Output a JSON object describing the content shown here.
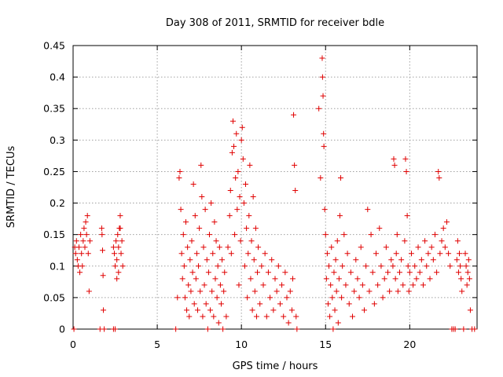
{
  "chart_data": {
    "type": "scatter",
    "title": "Day 308 of 2011, SRMTID for receiver bdle",
    "xlabel": "GPS time / hours",
    "ylabel": "SRMTID / TECUs",
    "xlim": [
      0,
      24
    ],
    "ylim": [
      0,
      0.45
    ],
    "xticks": [
      0,
      5,
      10,
      15,
      20
    ],
    "yticks": [
      0,
      0.05,
      0.1,
      0.15,
      0.2,
      0.25,
      0.3,
      0.35,
      0.4,
      0.45
    ],
    "xtick_labels": [
      "0",
      "5",
      "10",
      "15",
      "20"
    ],
    "ytick_labels": [
      "0",
      "0.05",
      "0.1",
      "0.15",
      "0.2",
      "0.25",
      "0.3",
      "0.35",
      "0.4",
      "0.45"
    ],
    "grid": true,
    "marker": "+",
    "color": "#e00000",
    "series": [
      {
        "name": "SRMTID",
        "points": [
          [
            0.05,
            0.0
          ],
          [
            0.1,
            0.13
          ],
          [
            0.15,
            0.12
          ],
          [
            0.2,
            0.14
          ],
          [
            0.25,
            0.11
          ],
          [
            0.3,
            0.1
          ],
          [
            0.35,
            0.13
          ],
          [
            0.4,
            0.09
          ],
          [
            0.45,
            0.15
          ],
          [
            0.5,
            0.12
          ],
          [
            0.55,
            0.1
          ],
          [
            0.6,
            0.14
          ],
          [
            0.65,
            0.16
          ],
          [
            0.7,
            0.13
          ],
          [
            0.75,
            0.17
          ],
          [
            0.8,
            0.15
          ],
          [
            0.85,
            0.18
          ],
          [
            0.9,
            0.12
          ],
          [
            0.95,
            0.06
          ],
          [
            1.0,
            0.14
          ],
          [
            1.7,
            0.16
          ],
          [
            1.72,
            0.15
          ],
          [
            1.75,
            0.125
          ],
          [
            1.78,
            0.085
          ],
          [
            1.8,
            0.03
          ],
          [
            1.6,
            0.0
          ],
          [
            1.85,
            0.0
          ],
          [
            2.4,
            0.0
          ],
          [
            2.5,
            0.0
          ],
          [
            2.4,
            0.13
          ],
          [
            2.45,
            0.12
          ],
          [
            2.5,
            0.1
          ],
          [
            2.55,
            0.14
          ],
          [
            2.6,
            0.11
          ],
          [
            2.65,
            0.15
          ],
          [
            2.7,
            0.13
          ],
          [
            2.75,
            0.16
          ],
          [
            2.8,
            0.18
          ],
          [
            2.85,
            0.12
          ],
          [
            2.9,
            0.14
          ],
          [
            2.95,
            0.1
          ],
          [
            2.7,
            0.09
          ],
          [
            2.6,
            0.08
          ],
          [
            2.8,
            0.16
          ],
          [
            6.1,
            0.0
          ],
          [
            6.2,
            0.05
          ],
          [
            6.3,
            0.24
          ],
          [
            6.35,
            0.25
          ],
          [
            6.4,
            0.19
          ],
          [
            6.45,
            0.12
          ],
          [
            6.5,
            0.08
          ],
          [
            6.55,
            0.15
          ],
          [
            6.6,
            0.1
          ],
          [
            6.65,
            0.05
          ],
          [
            6.7,
            0.17
          ],
          [
            6.75,
            0.03
          ],
          [
            6.8,
            0.13
          ],
          [
            6.85,
            0.07
          ],
          [
            6.9,
            0.02
          ],
          [
            6.95,
            0.11
          ],
          [
            7.0,
            0.06
          ],
          [
            7.05,
            0.14
          ],
          [
            7.1,
            0.09
          ],
          [
            7.15,
            0.23
          ],
          [
            7.2,
            0.04
          ],
          [
            7.25,
            0.18
          ],
          [
            7.3,
            0.08
          ],
          [
            7.35,
            0.12
          ],
          [
            7.4,
            0.03
          ],
          [
            7.45,
            0.1
          ],
          [
            7.5,
            0.16
          ],
          [
            7.55,
            0.06
          ],
          [
            7.6,
            0.26
          ],
          [
            7.65,
            0.21
          ],
          [
            7.7,
            0.02
          ],
          [
            7.75,
            0.13
          ],
          [
            7.8,
            0.07
          ],
          [
            7.85,
            0.19
          ],
          [
            7.9,
            0.04
          ],
          [
            7.95,
            0.11
          ],
          [
            8.0,
            0.0
          ],
          [
            8.05,
            0.09
          ],
          [
            8.1,
            0.15
          ],
          [
            8.15,
            0.03
          ],
          [
            8.2,
            0.2
          ],
          [
            8.25,
            0.06
          ],
          [
            8.3,
            0.12
          ],
          [
            8.35,
            0.02
          ],
          [
            8.4,
            0.17
          ],
          [
            8.45,
            0.08
          ],
          [
            8.5,
            0.14
          ],
          [
            8.55,
            0.05
          ],
          [
            8.6,
            0.1
          ],
          [
            8.65,
            0.01
          ],
          [
            8.7,
            0.13
          ],
          [
            8.75,
            0.07
          ],
          [
            8.8,
            0.04
          ],
          [
            8.85,
            0.11
          ],
          [
            8.9,
            0.0
          ],
          [
            8.95,
            0.06
          ],
          [
            9.0,
            0.09
          ],
          [
            9.1,
            0.02
          ],
          [
            9.2,
            0.13
          ],
          [
            9.3,
            0.18
          ],
          [
            9.35,
            0.22
          ],
          [
            9.4,
            0.12
          ],
          [
            9.45,
            0.28
          ],
          [
            9.5,
            0.33
          ],
          [
            9.55,
            0.29
          ],
          [
            9.6,
            0.15
          ],
          [
            9.65,
            0.24
          ],
          [
            9.7,
            0.31
          ],
          [
            9.75,
            0.19
          ],
          [
            9.8,
            0.25
          ],
          [
            9.85,
            0.07
          ],
          [
            9.9,
            0.21
          ],
          [
            9.95,
            0.14
          ],
          [
            10.0,
            0.3
          ],
          [
            10.05,
            0.32
          ],
          [
            10.1,
            0.27
          ],
          [
            10.15,
            0.2
          ],
          [
            10.2,
            0.1
          ],
          [
            10.25,
            0.23
          ],
          [
            10.3,
            0.16
          ],
          [
            10.35,
            0.05
          ],
          [
            10.4,
            0.12
          ],
          [
            10.45,
            0.18
          ],
          [
            10.5,
            0.26
          ],
          [
            10.55,
            0.08
          ],
          [
            10.6,
            0.14
          ],
          [
            10.65,
            0.03
          ],
          [
            10.7,
            0.21
          ],
          [
            10.75,
            0.11
          ],
          [
            10.8,
            0.06
          ],
          [
            10.85,
            0.16
          ],
          [
            10.9,
            0.02
          ],
          [
            10.95,
            0.09
          ],
          [
            11.0,
            0.13
          ],
          [
            11.1,
            0.04
          ],
          [
            11.2,
            0.1
          ],
          [
            11.3,
            0.07
          ],
          [
            11.4,
            0.12
          ],
          [
            11.5,
            0.02
          ],
          [
            11.6,
            0.09
          ],
          [
            11.7,
            0.05
          ],
          [
            11.8,
            0.11
          ],
          [
            11.9,
            0.03
          ],
          [
            12.0,
            0.08
          ],
          [
            12.1,
            0.06
          ],
          [
            12.2,
            0.1
          ],
          [
            12.3,
            0.04
          ],
          [
            12.4,
            0.07
          ],
          [
            12.5,
            0.02
          ],
          [
            12.6,
            0.09
          ],
          [
            12.7,
            0.05
          ],
          [
            12.8,
            0.01
          ],
          [
            12.9,
            0.06
          ],
          [
            13.0,
            0.03
          ],
          [
            13.05,
            0.08
          ],
          [
            13.1,
            0.34
          ],
          [
            13.15,
            0.26
          ],
          [
            13.2,
            0.22
          ],
          [
            13.25,
            0.02
          ],
          [
            13.3,
            0.0
          ],
          [
            14.6,
            0.35
          ],
          [
            14.7,
            0.24
          ],
          [
            14.8,
            0.43
          ],
          [
            14.82,
            0.4
          ],
          [
            14.85,
            0.37
          ],
          [
            14.88,
            0.31
          ],
          [
            14.9,
            0.29
          ],
          [
            14.95,
            0.19
          ],
          [
            15.0,
            0.15
          ],
          [
            15.05,
            0.08
          ],
          [
            15.1,
            0.12
          ],
          [
            15.15,
            0.04
          ],
          [
            15.2,
            0.1
          ],
          [
            15.25,
            0.02
          ],
          [
            15.3,
            0.07
          ],
          [
            15.35,
            0.13
          ],
          [
            15.4,
            0.05
          ],
          [
            15.45,
            0.0
          ],
          [
            15.5,
            0.09
          ],
          [
            15.55,
            0.03
          ],
          [
            15.6,
            0.11
          ],
          [
            15.65,
            0.06
          ],
          [
            15.7,
            0.14
          ],
          [
            15.75,
            0.01
          ],
          [
            15.8,
            0.08
          ],
          [
            15.85,
            0.18
          ],
          [
            15.9,
            0.24
          ],
          [
            15.95,
            0.05
          ],
          [
            16.0,
            0.1
          ],
          [
            16.1,
            0.15
          ],
          [
            16.2,
            0.07
          ],
          [
            16.3,
            0.12
          ],
          [
            16.4,
            0.04
          ],
          [
            16.5,
            0.09
          ],
          [
            16.6,
            0.02
          ],
          [
            16.7,
            0.06
          ],
          [
            16.8,
            0.11
          ],
          [
            16.9,
            0.08
          ],
          [
            17.0,
            0.05
          ],
          [
            17.1,
            0.13
          ],
          [
            17.2,
            0.07
          ],
          [
            17.3,
            0.03
          ],
          [
            17.4,
            0.1
          ],
          [
            17.5,
            0.19
          ],
          [
            17.6,
            0.06
          ],
          [
            17.7,
            0.15
          ],
          [
            17.8,
            0.09
          ],
          [
            17.9,
            0.04
          ],
          [
            18.0,
            0.12
          ],
          [
            18.1,
            0.07
          ],
          [
            18.2,
            0.16
          ],
          [
            18.3,
            0.1
          ],
          [
            18.4,
            0.05
          ],
          [
            18.5,
            0.08
          ],
          [
            18.6,
            0.13
          ],
          [
            18.7,
            0.09
          ],
          [
            18.8,
            0.06
          ],
          [
            18.9,
            0.11
          ],
          [
            19.0,
            0.1
          ],
          [
            19.05,
            0.27
          ],
          [
            19.1,
            0.26
          ],
          [
            19.15,
            0.08
          ],
          [
            19.2,
            0.12
          ],
          [
            19.25,
            0.15
          ],
          [
            19.3,
            0.06
          ],
          [
            19.4,
            0.09
          ],
          [
            19.5,
            0.11
          ],
          [
            19.6,
            0.07
          ],
          [
            19.7,
            0.14
          ],
          [
            19.75,
            0.27
          ],
          [
            19.8,
            0.25
          ],
          [
            19.85,
            0.18
          ],
          [
            19.9,
            0.1
          ],
          [
            19.95,
            0.06
          ],
          [
            20.0,
            0.09
          ],
          [
            20.1,
            0.12
          ],
          [
            20.2,
            0.07
          ],
          [
            20.3,
            0.1
          ],
          [
            20.4,
            0.08
          ],
          [
            20.5,
            0.13
          ],
          [
            20.6,
            0.09
          ],
          [
            20.7,
            0.11
          ],
          [
            20.8,
            0.07
          ],
          [
            20.9,
            0.14
          ],
          [
            21.0,
            0.1
          ],
          [
            21.1,
            0.12
          ],
          [
            21.2,
            0.08
          ],
          [
            21.3,
            0.13
          ],
          [
            21.4,
            0.11
          ],
          [
            21.5,
            0.15
          ],
          [
            21.6,
            0.09
          ],
          [
            21.7,
            0.25
          ],
          [
            21.75,
            0.24
          ],
          [
            21.8,
            0.12
          ],
          [
            21.9,
            0.14
          ],
          [
            22.0,
            0.16
          ],
          [
            22.1,
            0.13
          ],
          [
            22.2,
            0.17
          ],
          [
            22.3,
            0.12
          ],
          [
            22.4,
            0.1
          ],
          [
            22.5,
            0.0
          ],
          [
            22.6,
            0.0
          ],
          [
            22.7,
            0.0
          ],
          [
            22.8,
            0.11
          ],
          [
            22.85,
            0.14
          ],
          [
            22.9,
            0.09
          ],
          [
            22.95,
            0.12
          ],
          [
            23.0,
            0.1
          ],
          [
            23.05,
            0.08
          ],
          [
            23.1,
            0.06
          ],
          [
            23.2,
            0.0
          ],
          [
            23.3,
            0.12
          ],
          [
            23.35,
            0.1
          ],
          [
            23.4,
            0.07
          ],
          [
            23.45,
            0.09
          ],
          [
            23.5,
            0.11
          ],
          [
            23.55,
            0.08
          ],
          [
            23.6,
            0.03
          ],
          [
            23.7,
            0.0
          ],
          [
            23.85,
            0.0
          ]
        ]
      }
    ]
  }
}
